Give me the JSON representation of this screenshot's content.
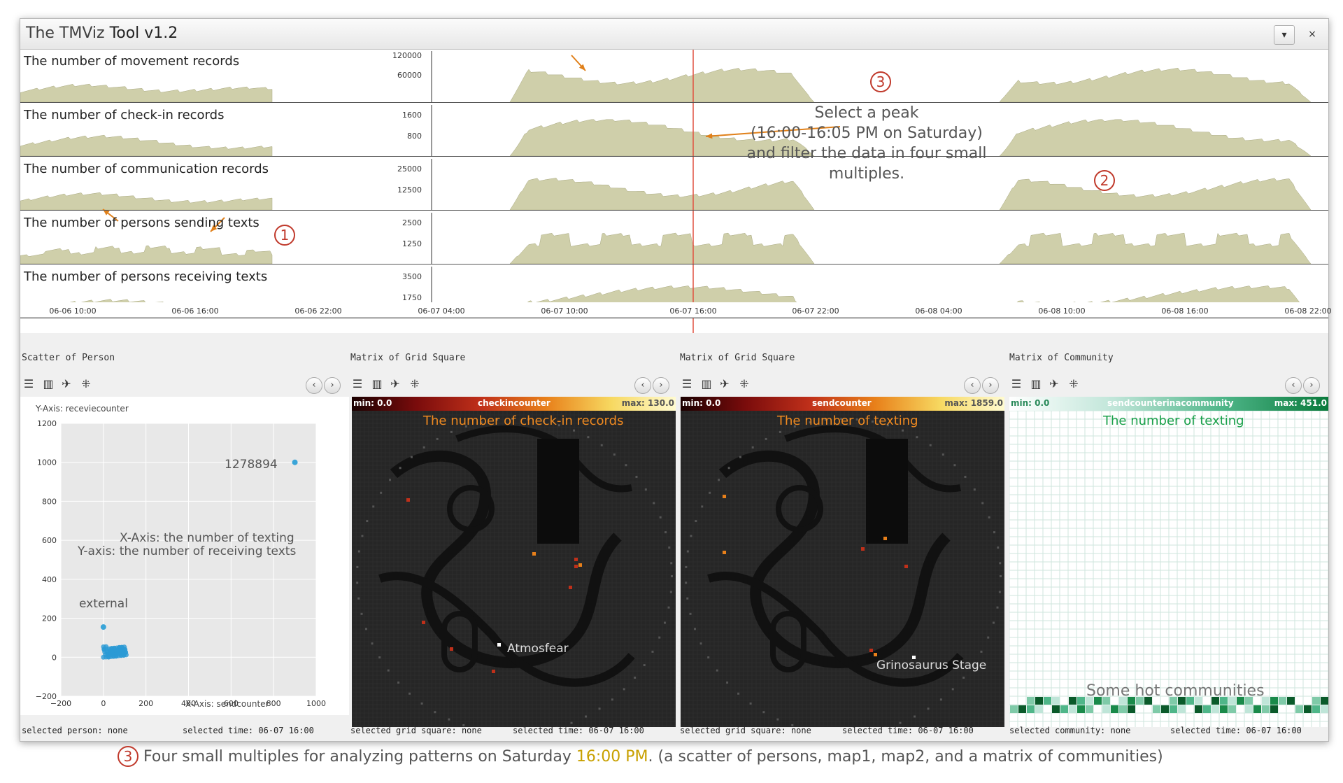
{
  "window": {
    "title_plain": "The TMViz ",
    "title_bold": "Tool v1.2",
    "dropdown_icon": "chevron-down-icon",
    "close_icon": "close-icon",
    "close_label": "×"
  },
  "timeline": {
    "rows": [
      {
        "label": "The number of movement records",
        "ticks": [
          "120000",
          "60000"
        ]
      },
      {
        "label": "The number of check-in records",
        "ticks": [
          "1600",
          "800"
        ]
      },
      {
        "label": "The number of communication records",
        "ticks": [
          "25000",
          "12500"
        ]
      },
      {
        "label": "The number of persons sending texts",
        "ticks": [
          "2500",
          "1250"
        ]
      },
      {
        "label": "The number of persons receiving texts",
        "ticks": [
          "3500",
          "1750"
        ]
      }
    ],
    "x_ticks": [
      "06-06 10:00",
      "06-06 16:00",
      "06-06 22:00",
      "06-07 04:00",
      "06-07 10:00",
      "06-07 16:00",
      "06-07 22:00",
      "06-08 04:00",
      "06-08 10:00",
      "06-08 16:00",
      "06-08 22:00"
    ],
    "selected_time": "06-07 16:00",
    "fill_color": "#cfcfaa",
    "selection_color": "#e05040"
  },
  "annotations": {
    "num1": "1",
    "num2": "2",
    "num3": "3",
    "select_peak_lines": [
      "Select a peak",
      "(16:00-16:05 PM on Saturday)",
      "and filter the data in four small",
      "multiples."
    ]
  },
  "panels": {
    "scatter": {
      "title": "Scatter of Person",
      "y_axis_label": "Y-Axis: receviecounter",
      "x_axis_label": "X-Axis: sendcounter",
      "y_ticks": [
        "1200",
        "1000",
        "800",
        "600",
        "400",
        "200",
        "0",
        "−200"
      ],
      "x_ticks": [
        "−200",
        "0",
        "200",
        "400",
        "600",
        "800",
        "1000"
      ],
      "note_x": "X-Axis: the number of texting",
      "note_y": "Y-axis: the number of receiving texts",
      "point_label": "1278894",
      "external_label": "external",
      "status_left": "selected person: none",
      "status_right": "selected time: 06-07 16:00"
    },
    "map1": {
      "title": "Matrix of Grid Square",
      "cb_min": "min: 0.0",
      "cb_name": "checkincounter",
      "cb_max": "max: 130.0",
      "overlay": "The number of check-in records",
      "place": "Atmosfear",
      "status_left": "selected grid square: none",
      "status_right": "selected time: 06-07 16:00"
    },
    "map2": {
      "title": "Matrix of Grid Square",
      "cb_min": "min: 0.0",
      "cb_name": "sendcounter",
      "cb_max": "max: 1859.0",
      "overlay": "The number of texting",
      "place": "Grinosaurus Stage",
      "status_left": "selected grid square: none",
      "status_right": "selected time: 06-07 16:00"
    },
    "community": {
      "title": "Matrix of Community",
      "cb_min": "min: 0.0",
      "cb_name": "sendcounterinacommunity",
      "cb_max": "max: 451.0",
      "overlay": "The number of texting",
      "hot_label": "Some hot communities",
      "status_left": "selected community: none",
      "status_right": "selected time: 06-07 16:00"
    }
  },
  "caption": {
    "num": "3",
    "before": " Four small multiples for analyzing patterns on Saturday ",
    "highlight": "16:00 PM",
    "after": ". (a scatter of persons, map1, map2, and a matrix of communities)"
  },
  "icons": {
    "toolbar": [
      "list-icon",
      "chart-icon",
      "bird-icon",
      "grid-dots-icon"
    ],
    "nav": [
      "chevron-left-icon",
      "chevron-right-icon"
    ]
  }
}
